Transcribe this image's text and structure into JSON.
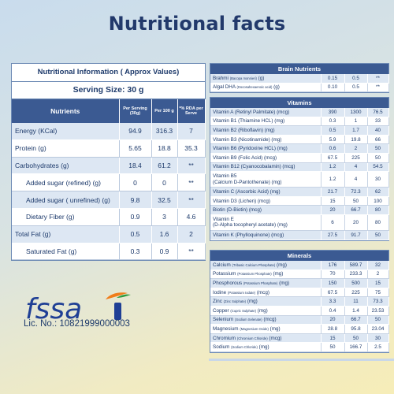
{
  "title": "Nutritional facts",
  "main": {
    "header": "Nutritional Information ( Approx Values)",
    "serving": "Serving Size: 30 g",
    "columns": [
      "Nutrients",
      "Per Serving (30g)",
      "Per 100 g",
      "*% RDA per Serve"
    ],
    "rows": [
      {
        "name": "Energy (KCal)",
        "serving": "94.9",
        "per100": "316.3",
        "rda": "7",
        "indent": false
      },
      {
        "name": "Protein (g)",
        "serving": "5.65",
        "per100": "18.8",
        "rda": "35.3",
        "indent": false
      },
      {
        "name": "Carbohydrates (g)",
        "serving": "18.4",
        "per100": "61.2",
        "rda": "**",
        "indent": false
      },
      {
        "name": "Added sugar (refined) (g)",
        "serving": "0",
        "per100": "0",
        "rda": "**",
        "indent": true
      },
      {
        "name": "Added sugar ( unrefined) (g)",
        "serving": "9.8",
        "per100": "32.5",
        "rda": "**",
        "indent": true
      },
      {
        "name": "Dietary Fiber (g)",
        "serving": "0.9",
        "per100": "3",
        "rda": "4.6",
        "indent": true
      },
      {
        "name": "Total Fat (g)",
        "serving": "0.5",
        "per100": "1.6",
        "rda": "2",
        "indent": false
      },
      {
        "name": "Saturated Fat (g)",
        "serving": "0.3",
        "per100": "0.9",
        "rda": "**",
        "indent": true
      }
    ]
  },
  "brain": {
    "caption": "Brain Nutrients",
    "rows": [
      {
        "name": "Brahmi",
        "sub": "(Bacopa monnieri)",
        "unit": "(g)",
        "a": "0.15",
        "b": "0.5",
        "c": "**"
      },
      {
        "name": "Algal DHA",
        "sub": "(Docosahexaenoic acid)",
        "unit": "(g)",
        "a": "0.10",
        "b": "0.5",
        "c": "**"
      }
    ]
  },
  "vitamins": {
    "caption": "Vitamins",
    "rows": [
      {
        "name": "Vitamin A (Retinyl Palmitate) (mcg)",
        "a": "390",
        "b": "1300",
        "c": "76.5"
      },
      {
        "name": "Vitamin B1 (Thiamine HCL) (mg)",
        "a": "0.3",
        "b": "1",
        "c": "33"
      },
      {
        "name": "Vitamin B2 (Riboflavin) (mg)",
        "a": "0.5",
        "b": "1.7",
        "c": "40"
      },
      {
        "name": "Vitamin B3 (Nicotinamide) (mg)",
        "a": "5.9",
        "b": "19.8",
        "c": "66"
      },
      {
        "name": "Vitamin B6 (Pyridoxine HCL) (mg)",
        "a": "0.6",
        "b": "2",
        "c": "50"
      },
      {
        "name": "Vitamin B9 (Folic Acid) (mcg)",
        "a": "67.5",
        "b": "225",
        "c": "50"
      },
      {
        "name": "Vitamin B12 (Cyanocobalamin) (mcg)",
        "a": "1.2",
        "b": "4",
        "c": "54.5"
      },
      {
        "name": "Vitamin B5",
        "name2": "(Calcium D-Pantothenate) (mg)",
        "a": "1.2",
        "b": "4",
        "c": "30"
      },
      {
        "name": "Vitamin C (Ascorbic Acid) (mg)",
        "a": "21.7",
        "b": "72.3",
        "c": "62"
      },
      {
        "name": "Vitamin D3 (Lichen) (mcg)",
        "a": "15",
        "b": "50",
        "c": "100"
      },
      {
        "name": "Biotin (D-Biotin) (mcg)",
        "a": "20",
        "b": "66.7",
        "c": "80"
      },
      {
        "name": "Vitamin E",
        "name2": "(D-Alpha tocopheryl acetate) (mg)",
        "a": "6",
        "b": "20",
        "c": "80"
      },
      {
        "name": "Vitamin K (Phylloquinone) (mcg)",
        "a": "27.5",
        "b": "91.7",
        "c": "50"
      }
    ]
  },
  "minerals": {
    "caption": "Minerals",
    "rows": [
      {
        "name": "Calcium",
        "sub": "(Tribasic Calcium Phosphate)",
        "unit": "(mg)",
        "a": "176",
        "b": "589.7",
        "c": "32"
      },
      {
        "name": "Potassium",
        "sub": "(Potassium Phosphate)",
        "unit": "(mg)",
        "a": "70",
        "b": "233.3",
        "c": "2"
      },
      {
        "name": "Phosphorous",
        "sub": "(Potassium Phosphate)",
        "unit": "(mg)",
        "a": "150",
        "b": "500",
        "c": "15"
      },
      {
        "name": "Iodine",
        "sub": "(Potassium Iodate)",
        "unit": "(mcg)",
        "a": "67.5",
        "b": "225",
        "c": "75"
      },
      {
        "name": "Zinc",
        "sub": "(Zinc Sulphate)",
        "unit": "(mg)",
        "a": "3.3",
        "b": "11",
        "c": "73.3"
      },
      {
        "name": "Copper",
        "sub": "(Cupric Sulphate)",
        "unit": "(mg)",
        "a": "0.4",
        "b": "1.4",
        "c": "23.53"
      },
      {
        "name": "Selenium",
        "sub": "(Sodium Selenate)",
        "unit": "(mcg)",
        "a": "20",
        "b": "66.7",
        "c": "50"
      },
      {
        "name": "Magnesium",
        "sub": "(Magnesium Oxide)",
        "unit": "(mg)",
        "a": "28.8",
        "b": "95.8",
        "c": "23.04"
      },
      {
        "name": "Chromium",
        "sub": "(Chromium Chloride)",
        "unit": "(mcg)",
        "a": "15",
        "b": "50",
        "c": "30"
      },
      {
        "name": "Sodium",
        "sub": "(Sodium Chloride)",
        "unit": "(mg)",
        "a": "50",
        "b": "166.7",
        "c": "2.5"
      }
    ]
  },
  "logo": {
    "text": "fssai",
    "colors": {
      "blue": "#1f3f95",
      "orange": "#f07d1a",
      "green": "#2e9a3e"
    }
  },
  "license": "Lic. No.: 10821999000003"
}
